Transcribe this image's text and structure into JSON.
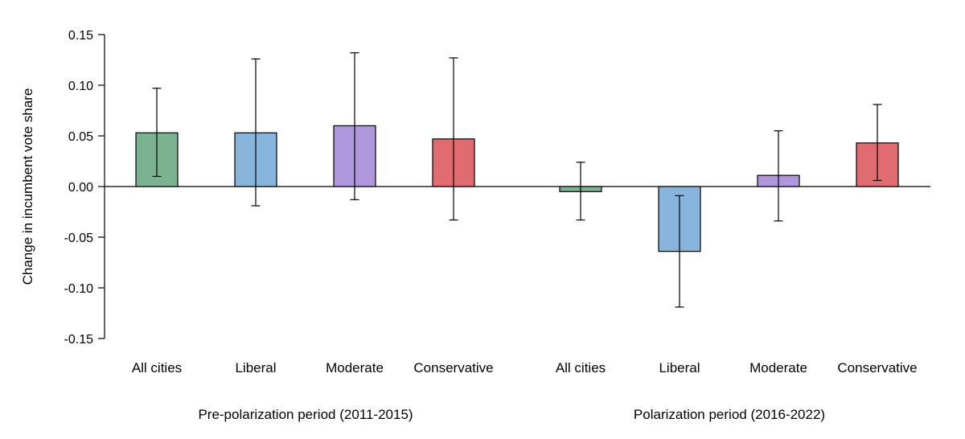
{
  "chart_data": {
    "type": "bar",
    "title": "",
    "xlabel": "",
    "ylabel": "Change in incumbent vote share",
    "ylim": [
      -0.15,
      0.15
    ],
    "yticks": [
      "0.15",
      "0.10",
      "0.05",
      "0.00",
      "-0.05",
      "-0.10",
      "-0.15"
    ],
    "colors": {
      "All cities": "#7bb391",
      "Liberal": "#88b5dc",
      "Moderate": "#ae97dd",
      "Conservative": "#e06c72"
    },
    "groups": [
      {
        "label": "Pre-polarization period (2011-2015)",
        "bars": [
          {
            "category": "All cities",
            "value": 0.053,
            "ci_low": 0.01,
            "ci_high": 0.097
          },
          {
            "category": "Liberal",
            "value": 0.053,
            "ci_low": -0.019,
            "ci_high": 0.126
          },
          {
            "category": "Moderate",
            "value": 0.06,
            "ci_low": -0.013,
            "ci_high": 0.132
          },
          {
            "category": "Conservative",
            "value": 0.047,
            "ci_low": -0.033,
            "ci_high": 0.127
          }
        ]
      },
      {
        "label": "Polarization period (2016-2022)",
        "bars": [
          {
            "category": "All cities",
            "value": -0.005,
            "ci_low": -0.033,
            "ci_high": 0.024
          },
          {
            "category": "Liberal",
            "value": -0.064,
            "ci_low": -0.119,
            "ci_high": -0.009
          },
          {
            "category": "Moderate",
            "value": 0.011,
            "ci_low": -0.034,
            "ci_high": 0.055
          },
          {
            "category": "Conservative",
            "value": 0.043,
            "ci_low": 0.006,
            "ci_high": 0.081
          }
        ]
      }
    ]
  }
}
